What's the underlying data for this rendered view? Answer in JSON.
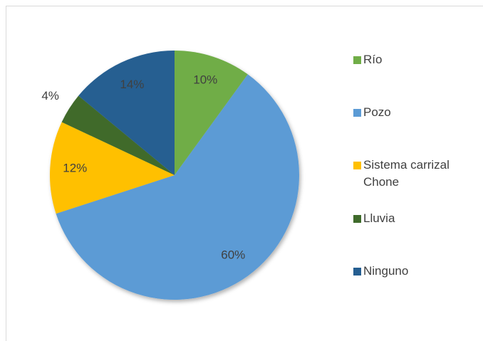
{
  "chart_data": {
    "type": "pie",
    "categories": [
      "Río",
      "Pozo",
      "Sistema carrizal Chone",
      "Lluvia",
      "Ninguno"
    ],
    "values": [
      10,
      60,
      12,
      4,
      14
    ],
    "value_labels": [
      "10%",
      "60%",
      "12%",
      "4%",
      "14%"
    ],
    "colors": [
      "#70ad47",
      "#5b9bd5",
      "#ffc000",
      "#3f6b2b",
      "#255e91"
    ],
    "legend": "right"
  }
}
